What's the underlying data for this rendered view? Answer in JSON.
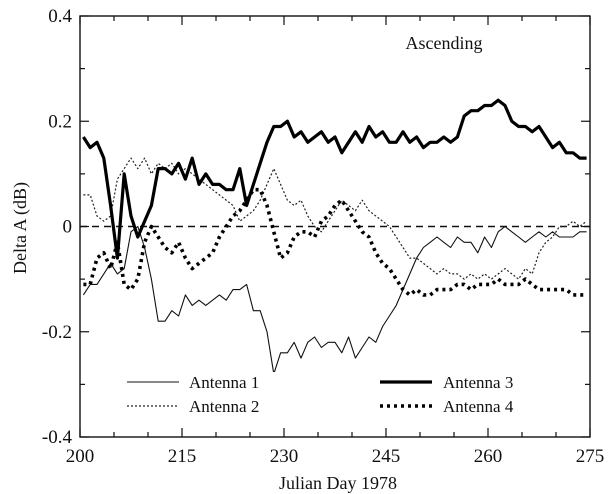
{
  "chart_data": {
    "type": "line",
    "title": "",
    "annotation": "Ascending",
    "xlabel": "Julian Day  1978",
    "ylabel": "Delta A (dB)",
    "xlim": [
      200,
      275
    ],
    "ylim": [
      -0.4,
      0.4
    ],
    "xticks": [
      200,
      215,
      230,
      245,
      260,
      275
    ],
    "xtick_labels": [
      "200",
      "215",
      "230",
      "245",
      "260",
      "275"
    ],
    "yticks": [
      -0.4,
      -0.2,
      0,
      0.2,
      0.4
    ],
    "ytick_labels": [
      "-0.4",
      "-0.2",
      "0",
      "0.2",
      "0.4"
    ],
    "reference_line": 0,
    "legend_position": "bottom",
    "series": [
      {
        "name": "Antenna 1",
        "style": "thin-solid",
        "points": [
          [
            200.5,
            -0.13
          ],
          [
            201.5,
            -0.11
          ],
          [
            202.5,
            -0.11
          ],
          [
            203.5,
            -0.09
          ],
          [
            204.5,
            -0.07
          ],
          [
            205.5,
            -0.09
          ],
          [
            206.5,
            -0.08
          ],
          [
            207.5,
            -0.01
          ],
          [
            208.5,
            0.0
          ],
          [
            209.5,
            -0.04
          ],
          [
            210.5,
            -0.1
          ],
          [
            211.5,
            -0.18
          ],
          [
            212.5,
            -0.18
          ],
          [
            213.5,
            -0.16
          ],
          [
            214.5,
            -0.17
          ],
          [
            215.5,
            -0.13
          ],
          [
            216.5,
            -0.15
          ],
          [
            217.5,
            -0.14
          ],
          [
            218.5,
            -0.15
          ],
          [
            219.5,
            -0.14
          ],
          [
            220.5,
            -0.13
          ],
          [
            221.5,
            -0.14
          ],
          [
            222.5,
            -0.12
          ],
          [
            223.5,
            -0.12
          ],
          [
            224.5,
            -0.11
          ],
          [
            225.5,
            -0.16
          ],
          [
            226.5,
            -0.16
          ],
          [
            227.5,
            -0.2
          ],
          [
            228.5,
            -0.28
          ],
          [
            229.5,
            -0.24
          ],
          [
            230.5,
            -0.24
          ],
          [
            231.5,
            -0.22
          ],
          [
            232.5,
            -0.25
          ],
          [
            233.5,
            -0.22
          ],
          [
            234.5,
            -0.21
          ],
          [
            235.5,
            -0.23
          ],
          [
            236.5,
            -0.22
          ],
          [
            237.5,
            -0.22
          ],
          [
            238.5,
            -0.24
          ],
          [
            239.5,
            -0.21
          ],
          [
            240.5,
            -0.25
          ],
          [
            241.5,
            -0.23
          ],
          [
            242.5,
            -0.21
          ],
          [
            243.5,
            -0.22
          ],
          [
            244.5,
            -0.19
          ],
          [
            245.5,
            -0.17
          ],
          [
            246.5,
            -0.15
          ],
          [
            247.5,
            -0.12
          ],
          [
            248.5,
            -0.09
          ],
          [
            249.5,
            -0.06
          ],
          [
            250.5,
            -0.04
          ],
          [
            251.5,
            -0.03
          ],
          [
            252.5,
            -0.02
          ],
          [
            253.5,
            -0.03
          ],
          [
            254.5,
            -0.04
          ],
          [
            255.5,
            -0.02
          ],
          [
            256.5,
            -0.03
          ],
          [
            257.5,
            -0.03
          ],
          [
            258.5,
            -0.05
          ],
          [
            259.5,
            -0.02
          ],
          [
            260.5,
            -0.04
          ],
          [
            261.5,
            -0.01
          ],
          [
            262.5,
            0.0
          ],
          [
            263.5,
            -0.01
          ],
          [
            264.5,
            -0.02
          ],
          [
            265.5,
            -0.03
          ],
          [
            266.5,
            -0.02
          ],
          [
            267.5,
            -0.01
          ],
          [
            268.5,
            -0.02
          ],
          [
            269.5,
            -0.01
          ],
          [
            270.5,
            -0.02
          ],
          [
            271.5,
            -0.02
          ],
          [
            272.5,
            -0.02
          ],
          [
            273.5,
            -0.01
          ],
          [
            274.5,
            -0.01
          ]
        ]
      },
      {
        "name": "Antenna 2",
        "style": "thin-dotted",
        "points": [
          [
            200.5,
            0.06
          ],
          [
            201.5,
            0.06
          ],
          [
            202.5,
            0.02
          ],
          [
            203.5,
            0.01
          ],
          [
            204.5,
            0.02
          ],
          [
            205.5,
            0.09
          ],
          [
            206.5,
            0.11
          ],
          [
            207.5,
            0.13
          ],
          [
            208.5,
            0.11
          ],
          [
            209.5,
            0.13
          ],
          [
            210.5,
            0.1
          ],
          [
            211.5,
            0.12
          ],
          [
            212.5,
            0.11
          ],
          [
            213.5,
            0.12
          ],
          [
            214.5,
            0.1
          ],
          [
            215.5,
            0.11
          ],
          [
            216.5,
            0.1
          ],
          [
            217.5,
            0.09
          ],
          [
            218.5,
            0.08
          ],
          [
            219.5,
            0.07
          ],
          [
            220.5,
            0.06
          ],
          [
            221.5,
            0.05
          ],
          [
            222.5,
            0.04
          ],
          [
            223.5,
            0.01
          ],
          [
            224.5,
            0.02
          ],
          [
            225.5,
            0.03
          ],
          [
            226.5,
            0.05
          ],
          [
            227.5,
            0.08
          ],
          [
            228.5,
            0.11
          ],
          [
            229.5,
            0.08
          ],
          [
            230.5,
            0.05
          ],
          [
            231.5,
            0.04
          ],
          [
            232.5,
            0.05
          ],
          [
            233.5,
            0.02
          ],
          [
            234.5,
            0.0
          ],
          [
            235.5,
            -0.01
          ],
          [
            236.5,
            0.01
          ],
          [
            237.5,
            0.03
          ],
          [
            238.5,
            0.05
          ],
          [
            239.5,
            0.04
          ],
          [
            240.5,
            0.03
          ],
          [
            241.5,
            0.05
          ],
          [
            242.5,
            0.03
          ],
          [
            243.5,
            0.02
          ],
          [
            244.5,
            0.01
          ],
          [
            245.5,
            0.0
          ],
          [
            246.5,
            -0.02
          ],
          [
            247.5,
            -0.04
          ],
          [
            248.5,
            -0.06
          ],
          [
            249.5,
            -0.06
          ],
          [
            250.5,
            -0.07
          ],
          [
            251.5,
            -0.08
          ],
          [
            252.5,
            -0.09
          ],
          [
            253.5,
            -0.08
          ],
          [
            254.5,
            -0.09
          ],
          [
            255.5,
            -0.09
          ],
          [
            256.5,
            -0.1
          ],
          [
            257.5,
            -0.09
          ],
          [
            258.5,
            -0.1
          ],
          [
            259.5,
            -0.09
          ],
          [
            260.5,
            -0.1
          ],
          [
            261.5,
            -0.09
          ],
          [
            262.5,
            -0.08
          ],
          [
            263.5,
            -0.09
          ],
          [
            264.5,
            -0.1
          ],
          [
            265.5,
            -0.08
          ],
          [
            266.5,
            -0.09
          ],
          [
            267.5,
            -0.05
          ],
          [
            268.5,
            -0.03
          ],
          [
            269.5,
            -0.02
          ],
          [
            270.5,
            0.0
          ],
          [
            271.5,
            0.0
          ],
          [
            272.5,
            0.01
          ],
          [
            273.5,
            0.0
          ],
          [
            274.5,
            0.01
          ]
        ]
      },
      {
        "name": "Antenna 3",
        "style": "thick-solid",
        "points": [
          [
            200.5,
            0.17
          ],
          [
            201.5,
            0.15
          ],
          [
            202.5,
            0.16
          ],
          [
            203.5,
            0.13
          ],
          [
            204.5,
            0.04
          ],
          [
            205.5,
            -0.06
          ],
          [
            206.5,
            0.1
          ],
          [
            207.5,
            0.02
          ],
          [
            208.5,
            -0.02
          ],
          [
            209.5,
            0.01
          ],
          [
            210.5,
            0.04
          ],
          [
            211.5,
            0.11
          ],
          [
            212.5,
            0.11
          ],
          [
            213.5,
            0.1
          ],
          [
            214.5,
            0.12
          ],
          [
            215.5,
            0.09
          ],
          [
            216.5,
            0.13
          ],
          [
            217.5,
            0.08
          ],
          [
            218.5,
            0.1
          ],
          [
            219.5,
            0.08
          ],
          [
            220.5,
            0.08
          ],
          [
            221.5,
            0.07
          ],
          [
            222.5,
            0.07
          ],
          [
            223.5,
            0.11
          ],
          [
            224.5,
            0.04
          ],
          [
            225.5,
            0.08
          ],
          [
            226.5,
            0.12
          ],
          [
            227.5,
            0.16
          ],
          [
            228.5,
            0.19
          ],
          [
            229.5,
            0.19
          ],
          [
            230.5,
            0.2
          ],
          [
            231.5,
            0.17
          ],
          [
            232.5,
            0.18
          ],
          [
            233.5,
            0.16
          ],
          [
            234.5,
            0.17
          ],
          [
            235.5,
            0.18
          ],
          [
            236.5,
            0.16
          ],
          [
            237.5,
            0.17
          ],
          [
            238.5,
            0.14
          ],
          [
            239.5,
            0.16
          ],
          [
            240.5,
            0.18
          ],
          [
            241.5,
            0.16
          ],
          [
            242.5,
            0.19
          ],
          [
            243.5,
            0.17
          ],
          [
            244.5,
            0.18
          ],
          [
            245.5,
            0.16
          ],
          [
            246.5,
            0.16
          ],
          [
            247.5,
            0.18
          ],
          [
            248.5,
            0.16
          ],
          [
            249.5,
            0.17
          ],
          [
            250.5,
            0.15
          ],
          [
            251.5,
            0.16
          ],
          [
            252.5,
            0.16
          ],
          [
            253.5,
            0.17
          ],
          [
            254.5,
            0.16
          ],
          [
            255.5,
            0.17
          ],
          [
            256.5,
            0.21
          ],
          [
            257.5,
            0.22
          ],
          [
            258.5,
            0.22
          ],
          [
            259.5,
            0.23
          ],
          [
            260.5,
            0.23
          ],
          [
            261.5,
            0.24
          ],
          [
            262.5,
            0.23
          ],
          [
            263.5,
            0.2
          ],
          [
            264.5,
            0.19
          ],
          [
            265.5,
            0.19
          ],
          [
            266.5,
            0.18
          ],
          [
            267.5,
            0.19
          ],
          [
            268.5,
            0.17
          ],
          [
            269.5,
            0.15
          ],
          [
            270.5,
            0.16
          ],
          [
            271.5,
            0.14
          ],
          [
            272.5,
            0.14
          ],
          [
            273.5,
            0.13
          ],
          [
            274.5,
            0.13
          ]
        ]
      },
      {
        "name": "Antenna 4",
        "style": "thick-dotted",
        "points": [
          [
            200.5,
            -0.11
          ],
          [
            201.5,
            -0.11
          ],
          [
            202.5,
            -0.06
          ],
          [
            203.5,
            -0.05
          ],
          [
            204.5,
            -0.08
          ],
          [
            205.5,
            -0.03
          ],
          [
            206.5,
            -0.11
          ],
          [
            207.5,
            -0.12
          ],
          [
            208.5,
            -0.1
          ],
          [
            209.5,
            -0.03
          ],
          [
            210.5,
            0.0
          ],
          [
            211.5,
            -0.02
          ],
          [
            212.5,
            -0.04
          ],
          [
            213.5,
            -0.05
          ],
          [
            214.5,
            -0.03
          ],
          [
            215.5,
            -0.06
          ],
          [
            216.5,
            -0.08
          ],
          [
            217.5,
            -0.07
          ],
          [
            218.5,
            -0.06
          ],
          [
            219.5,
            -0.05
          ],
          [
            220.5,
            -0.02
          ],
          [
            221.5,
            0.0
          ],
          [
            222.5,
            0.02
          ],
          [
            223.5,
            0.03
          ],
          [
            224.5,
            0.05
          ],
          [
            225.5,
            0.07
          ],
          [
            226.5,
            0.07
          ],
          [
            227.5,
            0.04
          ],
          [
            228.5,
            -0.01
          ],
          [
            229.5,
            -0.06
          ],
          [
            230.5,
            -0.05
          ],
          [
            231.5,
            -0.02
          ],
          [
            232.5,
            -0.01
          ],
          [
            233.5,
            -0.01
          ],
          [
            234.5,
            -0.02
          ],
          [
            235.5,
            0.01
          ],
          [
            236.5,
            0.02
          ],
          [
            237.5,
            0.04
          ],
          [
            238.5,
            0.05
          ],
          [
            239.5,
            0.03
          ],
          [
            240.5,
            0.01
          ],
          [
            241.5,
            -0.01
          ],
          [
            242.5,
            -0.02
          ],
          [
            243.5,
            -0.05
          ],
          [
            244.5,
            -0.07
          ],
          [
            245.5,
            -0.08
          ],
          [
            246.5,
            -0.1
          ],
          [
            247.5,
            -0.12
          ],
          [
            248.5,
            -0.13
          ],
          [
            249.5,
            -0.12
          ],
          [
            250.5,
            -0.13
          ],
          [
            251.5,
            -0.13
          ],
          [
            252.5,
            -0.12
          ],
          [
            253.5,
            -0.12
          ],
          [
            254.5,
            -0.12
          ],
          [
            255.5,
            -0.11
          ],
          [
            256.5,
            -0.11
          ],
          [
            257.5,
            -0.12
          ],
          [
            258.5,
            -0.11
          ],
          [
            259.5,
            -0.11
          ],
          [
            260.5,
            -0.11
          ],
          [
            261.5,
            -0.1
          ],
          [
            262.5,
            -0.11
          ],
          [
            263.5,
            -0.11
          ],
          [
            264.5,
            -0.11
          ],
          [
            265.5,
            -0.1
          ],
          [
            266.5,
            -0.11
          ],
          [
            267.5,
            -0.12
          ],
          [
            268.5,
            -0.12
          ],
          [
            269.5,
            -0.12
          ],
          [
            270.5,
            -0.12
          ],
          [
            271.5,
            -0.12
          ],
          [
            272.5,
            -0.13
          ],
          [
            273.5,
            -0.13
          ],
          [
            274.5,
            -0.13
          ]
        ]
      }
    ]
  }
}
